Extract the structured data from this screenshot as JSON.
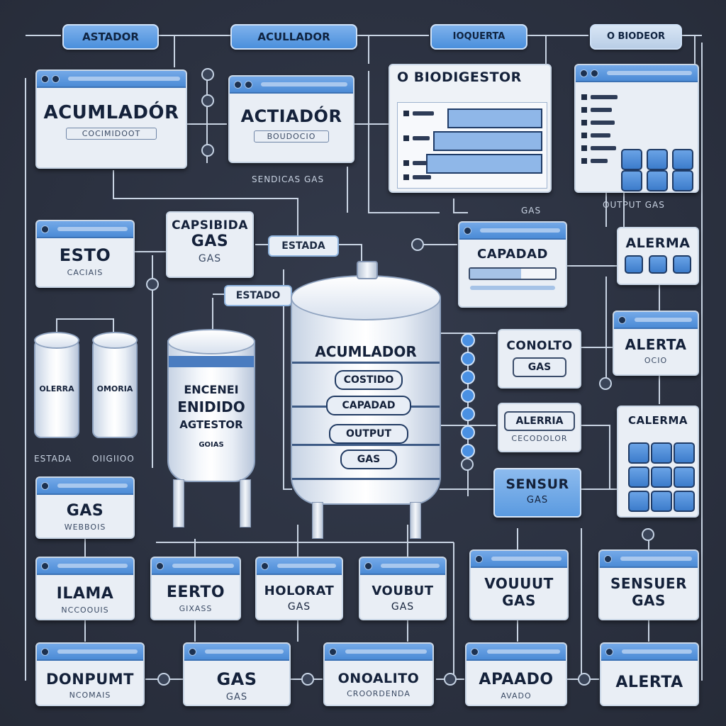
{
  "top_pills": [
    "ASTADOR",
    "ACULLADOR",
    "IOQUERTA",
    "O BIODEOR"
  ],
  "cards": {
    "acumlador": {
      "title": "ACUMLADÓR",
      "sub": "COCIMIDOOT"
    },
    "actiador": {
      "title": "ACTIADÓR",
      "sub": "BOUDOCIO"
    },
    "biodigestor": {
      "title": "O BIODIGESTOR"
    },
    "esto": {
      "title": "ESTO",
      "sub": "CACIAIS"
    },
    "capsibida": {
      "title": "CAPSIBIDA",
      "line2": "GAS",
      "line3": "GAS"
    },
    "capadad": {
      "title": "CAPADAD"
    },
    "alerma_top": {
      "title": "ALERMA"
    },
    "alerta_mid": {
      "title": "ALERTA",
      "sub": "OCIO"
    },
    "conolto": {
      "title": "CONOLTO",
      "sub": "GAS"
    },
    "alerria": {
      "title": "ALERRIA",
      "sub": "CECODOLOR"
    },
    "calerma": {
      "title": "CALERMA"
    },
    "sensor": {
      "title": "SENSUR",
      "sub": "GAS"
    },
    "gas_left": {
      "title": "GAS",
      "sub": "WEBBOIS"
    },
    "ilama": {
      "title": "ILAMA",
      "sub": "NCCOOUIS"
    },
    "eerto": {
      "title": "EERTO",
      "sub": "GIXASS"
    },
    "helorat": {
      "title": "HOLORAT",
      "sub": "GAS"
    },
    "voubut": {
      "title": "VOUBUT",
      "sub": "GAS"
    },
    "volut_right": {
      "title": "VOUUUT",
      "sub": "GAS"
    },
    "sensuer_right": {
      "title": "SENSUER",
      "sub": "GAS"
    },
    "donpumt": {
      "title": "DONPUMT",
      "sub": "NCOMAIS"
    },
    "gas_bottom": {
      "title": "GAS",
      "sub": "GAS"
    },
    "onoalito": {
      "title": "ONOALITO",
      "sub": "CROORDENDA"
    },
    "apaado": {
      "title": "APAADO",
      "sub": "AVADO"
    },
    "alerta_bottom": {
      "title": "ALERTA"
    }
  },
  "tags": {
    "estada": "ESTADA",
    "estado": "ESTADO",
    "sendicas": "SENDICAS GAS",
    "output_gas": "OUTPUT GAS",
    "gas_small": "GAS"
  },
  "small_tanks": {
    "left": "OLERRA",
    "right": "OMORIA",
    "label_left": "ESTADA",
    "label_right": "OIIGIIOO"
  },
  "mid_tank": {
    "lines": [
      "ENCENEI",
      "ENIDIDO",
      "AGTESTOR"
    ],
    "sub": "GOIAS"
  },
  "main_tank": {
    "title": "ACUMLADOR",
    "chips": [
      "COSTIDO",
      "CAPADAD",
      "OUTPUT",
      "GAS"
    ]
  }
}
